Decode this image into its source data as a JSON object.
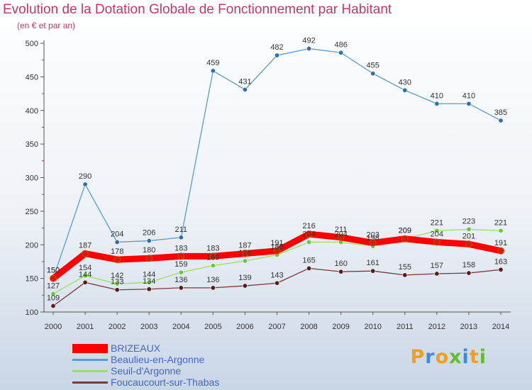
{
  "chart_data": {
    "type": "line",
    "title": "Evolution de la Dotation Globale de Fonctionnement par Habitant",
    "subtitle": "(en € et par an)",
    "xlabel": "",
    "ylabel": "",
    "ylim": [
      100,
      500
    ],
    "yticks": [
      100,
      150,
      200,
      250,
      300,
      350,
      400,
      450,
      500
    ],
    "categories": [
      "2000",
      "2001",
      "2002",
      "2003",
      "2004",
      "2005",
      "2006",
      "2007",
      "2008",
      "2009",
      "2010",
      "2011",
      "2012",
      "2013",
      "2014"
    ],
    "series": [
      {
        "name": "BRIZEAUX",
        "color": "#ff0000",
        "marker": "#cc2200",
        "values": [
          150,
          187,
          178,
          180,
          183,
          183,
          187,
          191,
          216,
          211,
          203,
          209,
          204,
          201,
          191
        ]
      },
      {
        "name": "Beaulieu-en-Argonne",
        "color": "#5b9bd5",
        "marker": "#2e6fb0",
        "values": [
          150,
          290,
          204,
          206,
          211,
          459,
          431,
          482,
          492,
          486,
          455,
          430,
          410,
          410,
          385
        ]
      },
      {
        "name": "Seuil-d'Argonne",
        "color": "#99e066",
        "marker": "#66cc33",
        "values": [
          127,
          154,
          142,
          144,
          159,
          169,
          176,
          185,
          204,
          204,
          198,
          209,
          221,
          223,
          221
        ]
      },
      {
        "name": "Foucaucourt-sur-Thabas",
        "color": "#7a3a3a",
        "marker": "#5a1a1a",
        "values": [
          109,
          144,
          133,
          134,
          136,
          136,
          139,
          143,
          165,
          160,
          161,
          155,
          157,
          158,
          163
        ]
      }
    ],
    "legend": "bottom-left",
    "grid": false
  },
  "logo": {
    "letters": [
      "P",
      "r",
      "o",
      "x",
      "i",
      "t",
      "i"
    ],
    "colors": [
      "#f0a020",
      "#4488dd",
      "#f0a020",
      "#66bb33",
      "#4488dd",
      "#f0a020",
      "#66bb33"
    ]
  }
}
